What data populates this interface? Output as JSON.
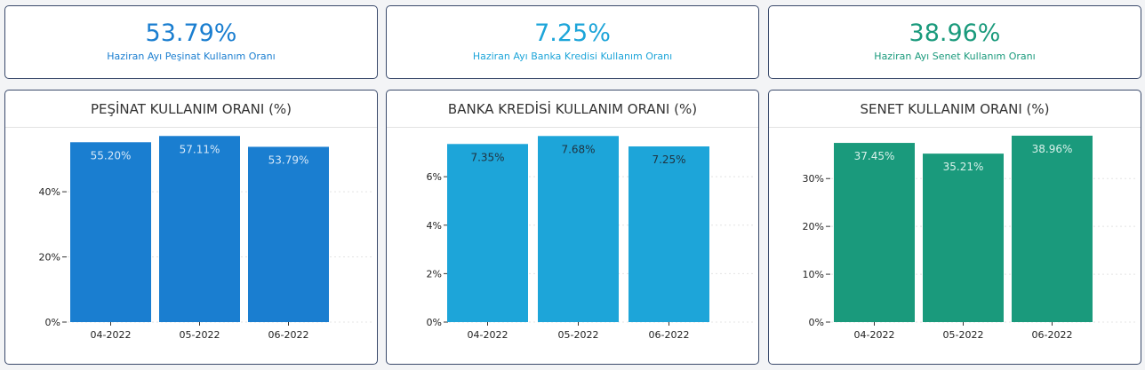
{
  "kpis": [
    {
      "value": "53.79%",
      "label": "Haziran Ayı Peşinat Kullanım Oranı",
      "color": "#1a7ed0"
    },
    {
      "value": "7.25%",
      "label": "Haziran Ayı Banka Kredisi Kullanım Oranı",
      "color": "#1da5d9"
    },
    {
      "value": "38.96%",
      "label": "Haziran Ayı Senet Kullanım Oranı",
      "color": "#1a9a7c"
    }
  ],
  "panels": [
    {
      "title": "PEŞİNAT KULLANIM ORANI (%)"
    },
    {
      "title": "BANKA KREDİSİ KULLANIM ORANI (%)"
    },
    {
      "title": "SENET KULLANIM ORANI (%)"
    }
  ],
  "chart_data": [
    {
      "type": "bar",
      "title": "PEŞİNAT KULLANIM ORANI (%)",
      "categories": [
        "04-2022",
        "05-2022",
        "06-2022"
      ],
      "values": [
        55.2,
        57.11,
        53.79
      ],
      "data_labels": [
        "55.20%",
        "57.11%",
        "53.79%"
      ],
      "yticks": [
        0,
        20,
        40
      ],
      "ytick_labels": [
        "0%",
        "20%",
        "40%"
      ],
      "ylim": [
        0,
        58
      ],
      "color": "#1a7ed0",
      "label_color": "#d6e8f8"
    },
    {
      "type": "bar",
      "title": "BANKA KREDİSİ KULLANIM ORANI (%)",
      "categories": [
        "04-2022",
        "05-2022",
        "06-2022"
      ],
      "values": [
        7.35,
        7.68,
        7.25
      ],
      "data_labels": [
        "7.35%",
        "7.68%",
        "7.25%"
      ],
      "yticks": [
        0,
        2,
        4,
        6
      ],
      "ytick_labels": [
        "0%",
        "2%",
        "4%",
        "6%"
      ],
      "ylim": [
        0,
        7.8
      ],
      "color": "#1da5d9",
      "label_color": "#1f3340"
    },
    {
      "type": "bar",
      "title": "SENET KULLANIM ORANI (%)",
      "categories": [
        "04-2022",
        "05-2022",
        "06-2022"
      ],
      "values": [
        37.45,
        35.21,
        38.96
      ],
      "data_labels": [
        "37.45%",
        "35.21%",
        "38.96%"
      ],
      "yticks": [
        0,
        10,
        20,
        30
      ],
      "ytick_labels": [
        "0%",
        "10%",
        "20%",
        "30%"
      ],
      "ylim": [
        0,
        39.5
      ],
      "color": "#1a9a7c",
      "label_color": "#d8f1ea"
    }
  ]
}
